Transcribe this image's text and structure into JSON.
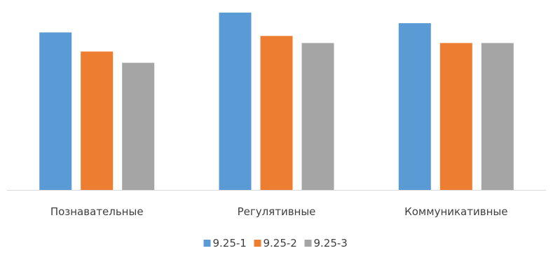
{
  "chart_data": {
    "type": "bar",
    "categories": [
      "Познавательные",
      "Регулятивные",
      "Коммуникативные"
    ],
    "series": [
      {
        "name": "9.25-1",
        "color": "#5b9bd5",
        "values": [
          2.23,
          2.51,
          2.36
        ]
      },
      {
        "name": "9.25-2",
        "color": "#ed7d31",
        "values": [
          1.96,
          2.18,
          2.08
        ]
      },
      {
        "name": "9.25-3",
        "color": "#a5a5a5",
        "values": [
          1.8,
          2.08,
          2.08
        ]
      }
    ],
    "title": "",
    "xlabel": "",
    "ylabel": "",
    "ylim": [
      0,
      2.55
    ],
    "grid": false,
    "legend_position": "bottom",
    "axis_color": "#d9d9d9"
  }
}
